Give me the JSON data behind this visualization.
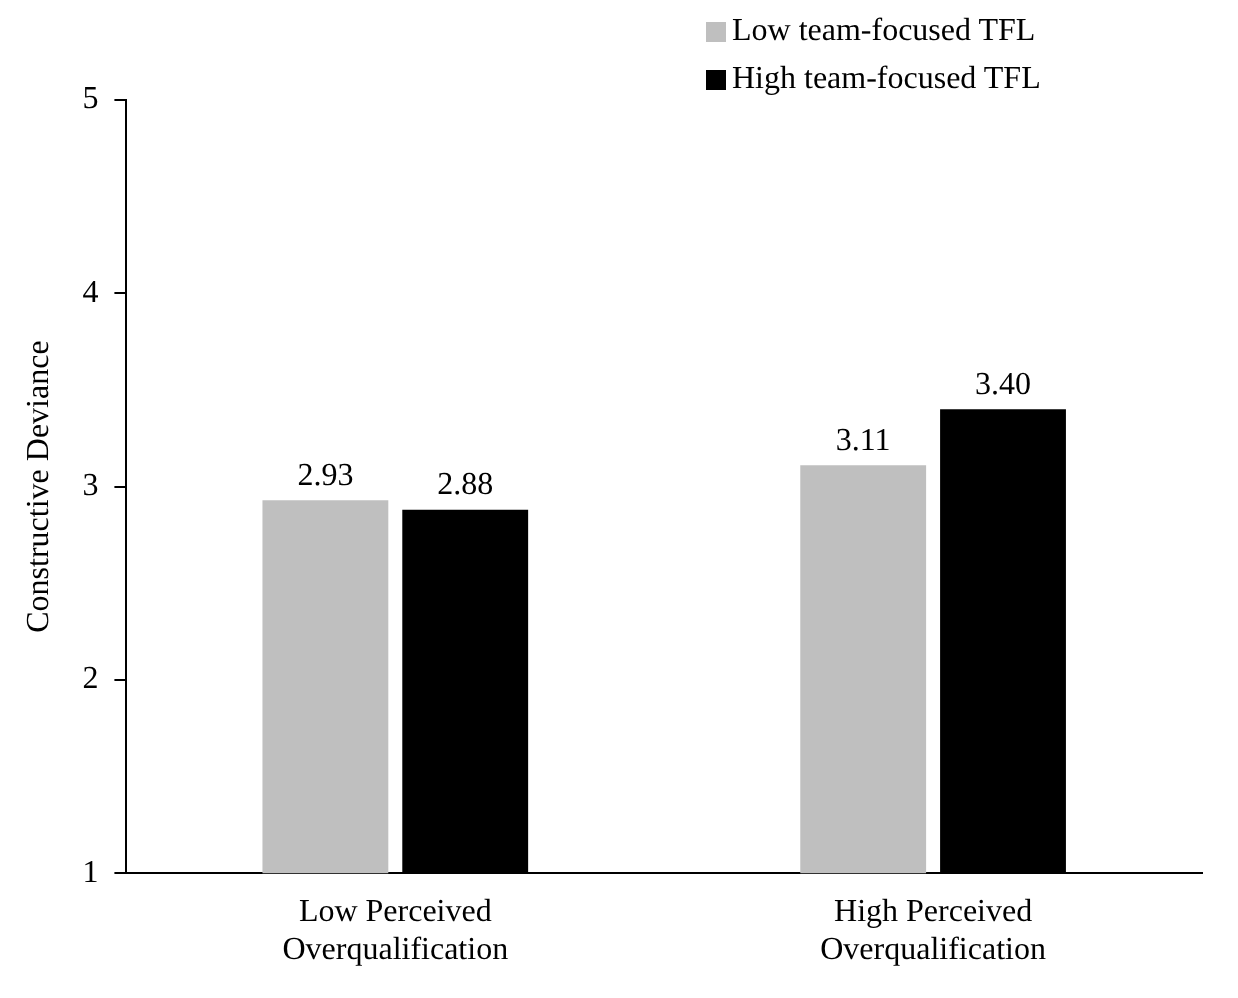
{
  "chart_data": {
    "type": "bar",
    "ylabel": "Constructive Deviance",
    "categories": [
      "Low Perceived Overqualification",
      "High Perceived Overqualification"
    ],
    "series": [
      {
        "name": "Low team-focused TFL",
        "color": "#bfbfbf",
        "values": [
          2.93,
          3.11
        ],
        "value_labels": [
          "2.93",
          "3.11"
        ]
      },
      {
        "name": "High team-focused TFL",
        "color": "#000000",
        "values": [
          2.88,
          3.4
        ],
        "value_labels": [
          "2.88",
          "3.40"
        ]
      }
    ],
    "ylim": [
      1,
      5
    ],
    "yticks": [
      1,
      2,
      3,
      4,
      5
    ],
    "grid": false,
    "legend": "top right"
  }
}
